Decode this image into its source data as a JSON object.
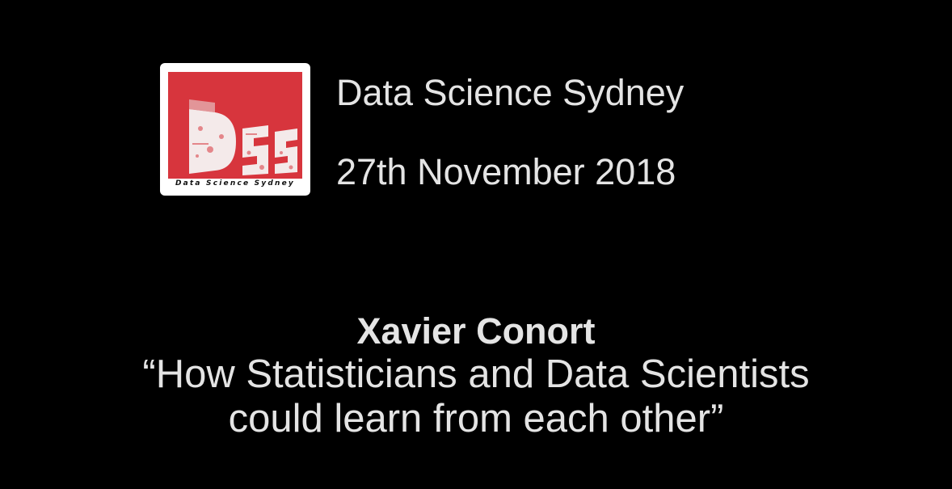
{
  "logo": {
    "caption": "Data Science Sydney",
    "red_color": "#d7353d"
  },
  "header": {
    "org_name": "Data Science Sydney",
    "date": "27th November 2018"
  },
  "talk": {
    "speaker": "Xavier Conort",
    "title_line1": "“How Statisticians and Data Scientists",
    "title_line2": "could learn from each other”"
  }
}
